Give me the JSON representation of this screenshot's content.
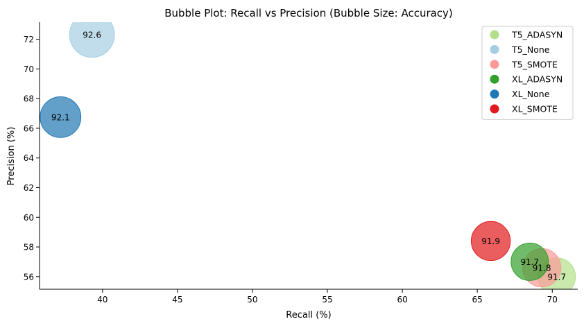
{
  "chart_data": {
    "type": "scatter",
    "title": "Bubble Plot: Recall vs Precision (Bubble Size: Accuracy)",
    "xlabel": "Recall (%)",
    "ylabel": "Precision (%)",
    "xlim": [
      35.8,
      71.7
    ],
    "ylim": [
      55.15,
      73.15
    ],
    "xticks": [
      40,
      45,
      50,
      55,
      60,
      65,
      70
    ],
    "yticks": [
      56,
      58,
      60,
      62,
      64,
      66,
      68,
      70,
      72
    ],
    "grid": false,
    "legend_position": "top-right",
    "size_encoding": "accuracy",
    "series": [
      {
        "name": "T5_ADASYN",
        "color": "#b2df8a",
        "recall": 70.3,
        "precision": 56.0,
        "accuracy": 91.7,
        "label": "91.7"
      },
      {
        "name": "T5_None",
        "color": "#a6cee3",
        "recall": 39.3,
        "precision": 72.3,
        "accuracy": 92.6,
        "label": "92.6"
      },
      {
        "name": "T5_SMOTE",
        "color": "#fb9a99",
        "recall": 69.3,
        "precision": 56.6,
        "accuracy": 91.8,
        "label": "91.8"
      },
      {
        "name": "XL_ADASYN",
        "color": "#33a02c",
        "recall": 68.5,
        "precision": 57.0,
        "accuracy": 91.7,
        "label": "91.7"
      },
      {
        "name": "XL_None",
        "color": "#1f78b4",
        "recall": 37.2,
        "precision": 66.75,
        "accuracy": 92.1,
        "label": "92.1"
      },
      {
        "name": "XL_SMOTE",
        "color": "#e31a1c",
        "recall": 65.9,
        "precision": 58.4,
        "accuracy": 91.9,
        "label": "91.9"
      }
    ]
  }
}
